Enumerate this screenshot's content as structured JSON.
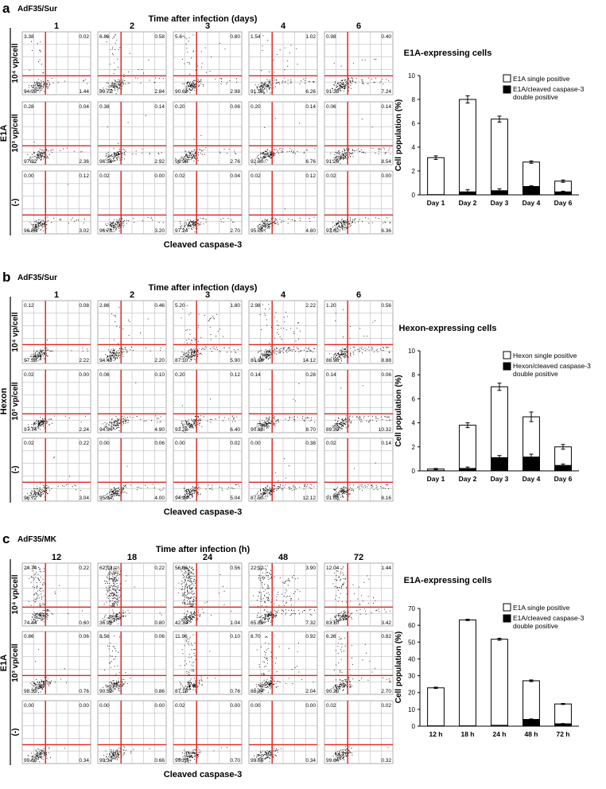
{
  "figure": {
    "panels": [
      {
        "letter": "a",
        "construct": "AdF35/Sur",
        "time_title": "Time after infection (days)",
        "time_labels": [
          "1",
          "2",
          "3",
          "4",
          "6"
        ],
        "marker": "E1A",
        "row_labels": [
          "10⁴ vp/cell",
          "10³ vp/cell",
          "(-)"
        ],
        "x_axis_title": "Cleaved caspase-3",
        "quadrants": [
          [
            [
              "3.38",
              "0.02",
              "94.98",
              "1.44"
            ],
            [
              "6.86",
              "0.58",
              "89.72",
              "2.84"
            ],
            [
              "5.6",
              "0.80",
              "90.62",
              "2.98"
            ],
            [
              "1.54",
              "1.02",
              "91.18",
              "6.26"
            ],
            [
              "0.98",
              "0.40",
              "91.38",
              "7.24"
            ]
          ],
          [
            [
              "0.28",
              "0.04",
              "97.32",
              "2.36"
            ],
            [
              "0.38",
              "0.14",
              "96.56",
              "2.92"
            ],
            [
              "0.20",
              "0.06",
              "96.98",
              "2.76"
            ],
            [
              "0.20",
              "0.14",
              "92.90",
              "6.76"
            ],
            [
              "0.06",
              "0.14",
              "91.26",
              "8.54"
            ]
          ],
          [
            [
              "0.00",
              "0.12",
              "96.86",
              "3.02"
            ],
            [
              "0.02",
              "0.00",
              "96.78",
              "3.20"
            ],
            [
              "0.02",
              "0.04",
              "97.24",
              "2.70"
            ],
            [
              "0.02",
              "0.12",
              "95.06",
              "4.80"
            ],
            [
              "0.02",
              "0.00",
              "93.62",
              "6.36"
            ]
          ]
        ]
      },
      {
        "letter": "b",
        "construct": "AdF35/Sur",
        "time_title": "Time after infection (days)",
        "time_labels": [
          "1",
          "2",
          "3",
          "4",
          "6"
        ],
        "marker": "Hexon",
        "row_labels": [
          "10⁴ vp/cell",
          "10³ vp/cell",
          "(-)"
        ],
        "x_axis_title": "Cleaved caspase-3",
        "quadrants": [
          [
            [
              "0.12",
              "0.08",
              "97.58",
              "2.22"
            ],
            [
              "2.86",
              "0.46",
              "94.48",
              "2.20"
            ],
            [
              "5.20",
              "1.80",
              "87.10",
              "5.90"
            ],
            [
              "2.98",
              "2.22",
              "80.68",
              "14.12"
            ],
            [
              "1.20",
              "0.56",
              "88.96",
              "8.88"
            ]
          ],
          [
            [
              "0.02",
              "0.00",
              "97.74",
              "2.24"
            ],
            [
              "0.06",
              "0.10",
              "94.94",
              "4.90"
            ],
            [
              "0.20",
              "0.12",
              "93.28",
              "6.40"
            ],
            [
              "0.14",
              "0.28",
              "90.88",
              "8.70"
            ],
            [
              "0.14",
              "0.06",
              "89.20",
              "10.32"
            ]
          ],
          [
            [
              "0.02",
              "0.22",
              "96.72",
              "3.04"
            ],
            [
              "0.00",
              "0.06",
              "95.94",
              "4.00"
            ],
            [
              "0.00",
              "0.02",
              "94.94",
              "5.04"
            ],
            [
              "0.00",
              "0.38",
              "87.50",
              "12.12"
            ],
            [
              "0.02",
              "0.14",
              "91.68",
              "8.16"
            ]
          ]
        ]
      },
      {
        "letter": "c",
        "construct": "AdF35/MK",
        "time_title": "Time after infection (h)",
        "time_labels": [
          "12",
          "18",
          "24",
          "48",
          "72"
        ],
        "marker": "E1A",
        "row_labels": [
          "10⁴ vp/cell",
          "10³ vp/cell",
          "(-)"
        ],
        "x_axis_title": "Cleaved caspase-3",
        "quadrants": [
          [
            [
              "24.74",
              "0.22",
              "74.44",
              "0.60"
            ],
            [
              "62.02",
              "0.22",
              "36.96",
              "0.80"
            ],
            [
              "56.06",
              "0.56",
              "42.34",
              "1.04"
            ],
            [
              "22.92",
              "3.90",
              "65.86",
              "7.32"
            ],
            [
              "12.04",
              "1.44",
              "83.10",
              "3.42"
            ]
          ],
          [
            [
              "0.86",
              "0.06",
              "98.32",
              "0.76"
            ],
            [
              "8.56",
              "0.06",
              "90.52",
              "0.86"
            ],
            [
              "11.96",
              "0.10",
              "87.18",
              "0.76"
            ],
            [
              "8.70",
              "0.92",
              "88.34",
              "2.04"
            ],
            [
              "6.28",
              "0.82",
              "90.20",
              "2.70"
            ]
          ],
          [
            [
              "0.00",
              "0.00",
              "99.66",
              "0.34"
            ],
            [
              "0.00",
              "0.00",
              "99.34",
              "0.66"
            ],
            [
              "0.02",
              "0.00",
              "99.28",
              "0.70"
            ],
            [
              "0.00",
              "0.00",
              "99.66",
              "0.34"
            ],
            [
              "0.02",
              "0.02",
              "99.64",
              "0.32"
            ]
          ]
        ]
      }
    ]
  },
  "chart_data": [
    {
      "type": "bar",
      "stacked": true,
      "title": "E1A-expressing cells",
      "ylabel": "Cell population (%)",
      "xlabel": "",
      "categories": [
        "Day 1",
        "Day 2",
        "Day 3",
        "Day 4",
        "Day 6"
      ],
      "ylim": [
        0,
        10
      ],
      "yticks": [
        "0",
        "2",
        "4",
        "6",
        "8",
        "10"
      ],
      "series": [
        {
          "name": "E1A/cleaved caspase-3 double positive",
          "color": "#000000",
          "values": [
            0.02,
            0.25,
            0.35,
            0.7,
            0.25
          ]
        },
        {
          "name": "E1A single positive",
          "color": "#ffffff",
          "values": [
            3.1,
            7.75,
            6.0,
            2.05,
            0.9
          ]
        }
      ],
      "totals": [
        3.12,
        8.0,
        6.35,
        2.75,
        1.15
      ],
      "error": [
        0.15,
        0.3,
        0.25,
        0.1,
        0.1
      ],
      "legend": [
        "E1A single positive",
        "E1A/cleaved caspase-3",
        "double positive"
      ]
    },
    {
      "type": "bar",
      "stacked": true,
      "title": "Hexon-expressing cells",
      "ylabel": "Cell population (%)",
      "xlabel": "",
      "categories": [
        "Day 1",
        "Day 2",
        "Day 3",
        "Day 4",
        "Day 6"
      ],
      "ylim": [
        0,
        10
      ],
      "yticks": [
        "0",
        "2",
        "4",
        "6",
        "8",
        "10"
      ],
      "series": [
        {
          "name": "Hexon/cleaved caspase-3 double positive",
          "color": "#000000",
          "values": [
            0.02,
            0.2,
            1.1,
            1.15,
            0.45
          ]
        },
        {
          "name": "Hexon single positive",
          "color": "#ffffff",
          "values": [
            0.13,
            3.6,
            5.9,
            3.35,
            1.55
          ]
        }
      ],
      "totals": [
        0.15,
        3.8,
        7.0,
        4.5,
        2.0
      ],
      "error": [
        0.05,
        0.2,
        0.3,
        0.4,
        0.2
      ],
      "legend": [
        "Hexon single positive",
        "Hexon/cleaved caspase-3",
        "double positive"
      ]
    },
    {
      "type": "bar",
      "stacked": true,
      "title": "E1A-expressing cells",
      "ylabel": "Cell population (%)",
      "xlabel": "",
      "categories": [
        "12 h",
        "18 h",
        "24 h",
        "48 h",
        "72 h"
      ],
      "ylim": [
        0,
        70
      ],
      "yticks": [
        "0",
        "10",
        "20",
        "30",
        "40",
        "50",
        "60",
        "70"
      ],
      "series": [
        {
          "name": "E1A/cleaved caspase-3 double positive",
          "color": "#000000",
          "values": [
            0.2,
            0.2,
            0.5,
            4.0,
            1.4
          ]
        },
        {
          "name": "E1A single positive",
          "color": "#ffffff",
          "values": [
            22.6,
            63.0,
            51.2,
            23.0,
            11.8
          ]
        }
      ],
      "totals": [
        22.8,
        63.2,
        51.7,
        27.0,
        13.2
      ],
      "error": [
        0.4,
        0.4,
        0.6,
        0.5,
        0.3
      ],
      "legend": [
        "E1A single positive",
        "E1A/cleaved caspase-3",
        "double positive"
      ]
    }
  ]
}
